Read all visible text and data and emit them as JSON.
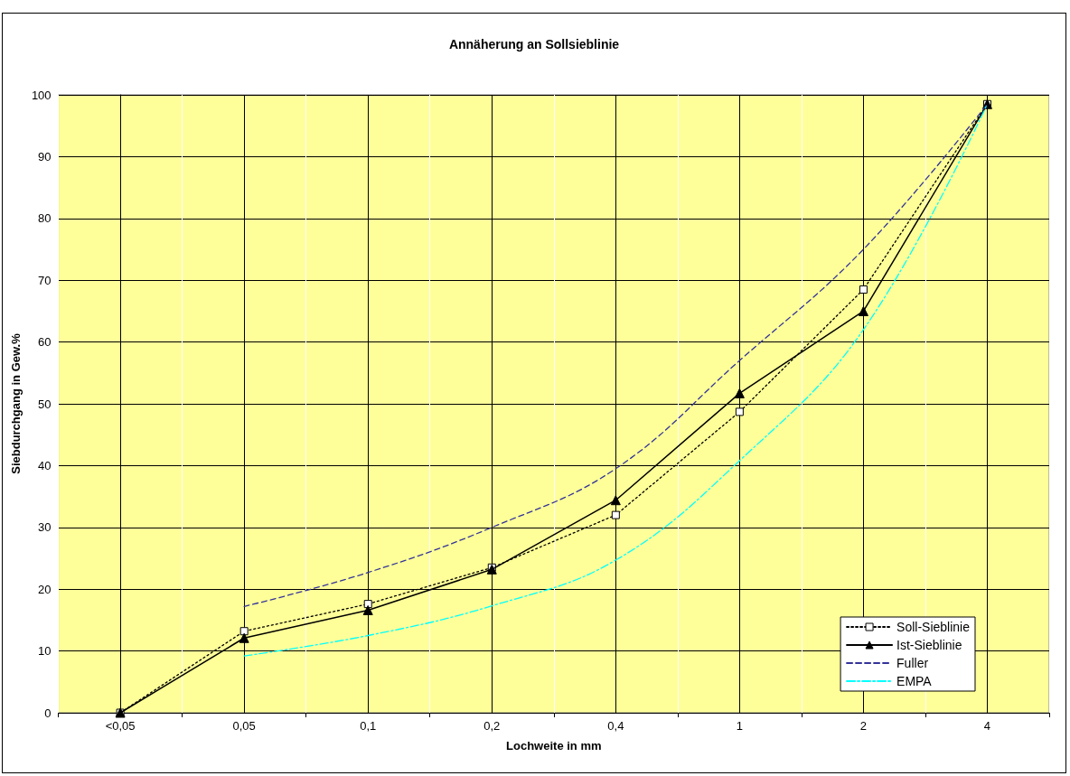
{
  "chart_data": {
    "type": "line",
    "title": "Annäherung an Sollsieblinie",
    "xlabel": "Lochweite in mm",
    "ylabel": "Siebdurchgang in Gew.%",
    "categories": [
      "<0,05",
      "0,05",
      "0,1",
      "0,2",
      "0,4",
      "1",
      "2",
      "4"
    ],
    "series": [
      {
        "name": "Soll-Sieblinie",
        "color": "#000000",
        "marker": "square",
        "line_style": "dotted",
        "values": [
          0,
          13.2,
          17.6,
          23.5,
          32,
          48.7,
          68.5,
          98.5
        ]
      },
      {
        "name": "Ist-Sieblinie",
        "color": "#000000",
        "marker": "triangle",
        "line_style": "solid",
        "values": [
          0,
          12.1,
          16.6,
          23.2,
          34.4,
          51.7,
          65,
          98.5
        ]
      },
      {
        "name": "Fuller",
        "color": "#333399",
        "marker": "none",
        "line_style": "dashed",
        "values": [
          null,
          17.2,
          22.7,
          30,
          39.5,
          57,
          75,
          98.5
        ]
      },
      {
        "name": "EMPA",
        "color": "#00ffff",
        "marker": "none",
        "line_style": "dashdot",
        "values": [
          null,
          9.2,
          12.5,
          17.3,
          24.7,
          40.8,
          62,
          98.5
        ]
      }
    ],
    "ylim": [
      0,
      100
    ],
    "yticks": [
      0,
      10,
      20,
      30,
      40,
      50,
      60,
      70,
      80,
      90,
      100
    ],
    "grid": true,
    "legend": "bottom right"
  }
}
